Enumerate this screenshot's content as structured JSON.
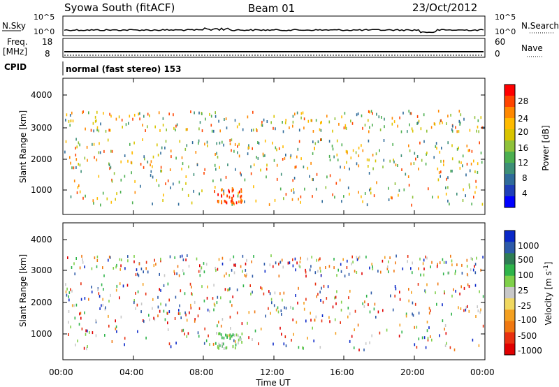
{
  "header": {
    "station": "Syowa South (fitACF)",
    "beam": "Beam 01",
    "date": "23/Oct/2012"
  },
  "noise_panel": {
    "left_label": "N.Sky",
    "right_label": "N.Search",
    "left_ticks": [
      "10^5",
      "10^0"
    ],
    "right_ticks": [
      "10^5",
      "10^0"
    ]
  },
  "freq_panel": {
    "left_label_line1": "Freq.",
    "left_label_line2": "[MHz]",
    "left_ticks": [
      "18",
      "8"
    ],
    "right_label": "Nave",
    "right_ticks": [
      "60",
      "0"
    ]
  },
  "cpid": {
    "label": "CPID",
    "text": "normal (fast stereo) 153"
  },
  "time_axis": {
    "label": "Time UT",
    "ticks": [
      "00:00",
      "04:00",
      "08:00",
      "12:00",
      "16:00",
      "20:00",
      "00:00"
    ]
  },
  "power_panel": {
    "ylabel": "Slant Range [km]",
    "yticks": [
      "4000",
      "3000",
      "2000",
      "1000"
    ],
    "colorbar_label": "Power [dB]",
    "colorbar_ticks": [
      "28",
      "24",
      "20",
      "16",
      "12",
      "8",
      "4"
    ],
    "colors": [
      "#ff0000",
      "#ff4400",
      "#ff8800",
      "#ffbb00",
      "#d9c400",
      "#8fc23a",
      "#4caf50",
      "#3d8f77",
      "#2f6b9a",
      "#1f3fb8",
      "#0000ff"
    ]
  },
  "velocity_panel": {
    "ylabel": "Slant Range [km]",
    "yticks": [
      "4000",
      "3000",
      "2000",
      "1000"
    ],
    "colorbar_label": "Velocity [m s",
    "colorbar_label_sup": "-1",
    "colorbar_label_end": "]",
    "colorbar_ticks": [
      "1000",
      "500",
      "100",
      "25",
      "-25",
      "-100",
      "-500",
      "-1000"
    ],
    "colors": [
      "#0a28c8",
      "#2d5aa8",
      "#2e7d54",
      "#2fb44a",
      "#7fd04a",
      "#c8c8c8",
      "#f0d860",
      "#f4a020",
      "#f07810",
      "#e83010",
      "#e00000"
    ]
  },
  "chart_data": [
    {
      "type": "scatter",
      "title": "Syowa South (fitACF) Beam 01 23/Oct/2012",
      "xlabel": "Time UT",
      "ylabel": "Slant Range [km]",
      "xlim_hours": [
        0,
        24
      ],
      "ylim": [
        180,
        4500
      ],
      "colorbar": "Power [dB]",
      "colorbar_range": [
        0,
        30
      ],
      "note": "backscatter range-time points colored by power"
    },
    {
      "type": "scatter",
      "xlabel": "Time UT",
      "ylabel": "Slant Range [km]",
      "xlim_hours": [
        0,
        24
      ],
      "ylim": [
        180,
        4500
      ],
      "colorbar": "Velocity [m s-1]",
      "colorbar_range": [
        -1000,
        1000
      ],
      "note": "backscatter range-time points colored by velocity"
    }
  ]
}
